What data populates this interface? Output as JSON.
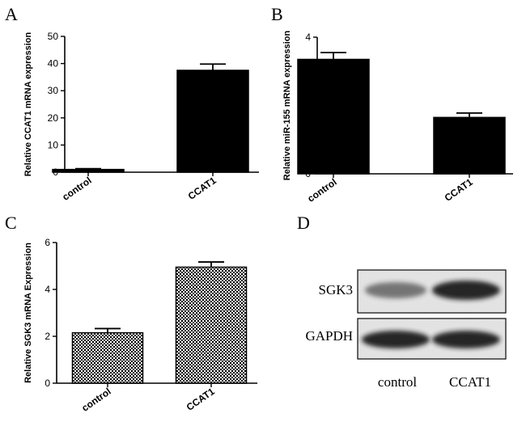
{
  "panels": [
    {
      "letter": "A"
    },
    {
      "letter": "B"
    },
    {
      "letter": "C"
    },
    {
      "letter": "D"
    }
  ],
  "chart_data": [
    {
      "type": "bar",
      "panel": "A",
      "ylabel": "Relative CCAT1 mRNA expression",
      "categories": [
        "control",
        "CCAT1"
      ],
      "values": [
        1.0,
        37.5
      ],
      "errors": [
        0.3,
        2.3
      ],
      "ylim": [
        0,
        50
      ],
      "yticks": [
        0,
        10,
        20,
        30,
        40,
        50
      ],
      "fill": "solid",
      "color": "#000000"
    },
    {
      "type": "bar",
      "panel": "B",
      "ylabel": "Relative miR-155 mRNA expression",
      "categories": [
        "control",
        "CCAT1"
      ],
      "values": [
        3.35,
        1.65
      ],
      "errors": [
        0.2,
        0.13
      ],
      "ylim": [
        0,
        4
      ],
      "yticks": [
        0,
        1,
        2,
        3,
        4
      ],
      "fill": "solid",
      "color": "#000000"
    },
    {
      "type": "bar",
      "panel": "C",
      "ylabel": "Relative SGK3 mRNA Expression",
      "categories": [
        "control",
        "CCAT1"
      ],
      "values": [
        2.15,
        4.95
      ],
      "errors": [
        0.18,
        0.22
      ],
      "ylim": [
        0,
        6
      ],
      "yticks": [
        0,
        2,
        4,
        6
      ],
      "fill": "checkered",
      "color": "#000000"
    }
  ],
  "blot": {
    "panel": "D",
    "rows": [
      {
        "label": "SGK3",
        "bands": [
          0.55,
          0.95
        ]
      },
      {
        "label": "GAPDH",
        "bands": [
          0.95,
          0.95
        ]
      }
    ],
    "lanes": [
      "control",
      "CCAT1"
    ]
  }
}
